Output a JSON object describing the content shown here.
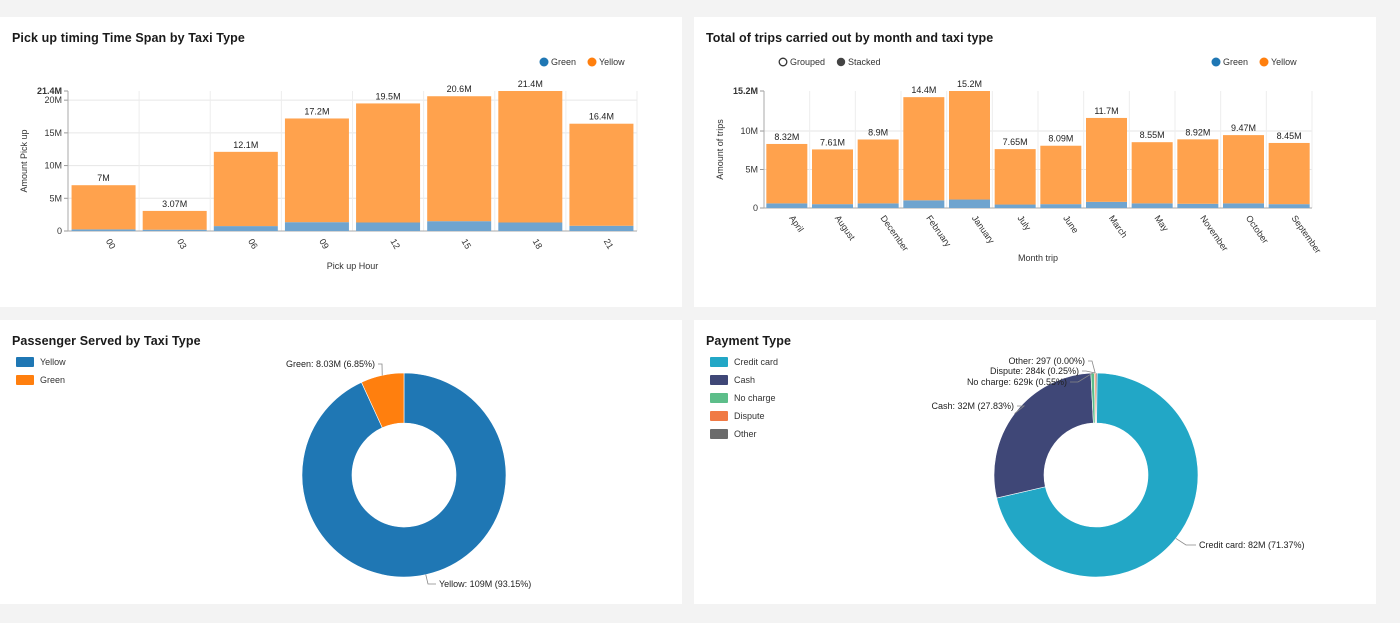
{
  "colors": {
    "green_series": "#1f77b4",
    "yellow_series": "#ff7f0e",
    "bar_green": "#6fa4cf",
    "bar_yellow": "#ffa24d",
    "donut_yellow": "#1f77b4",
    "donut_green": "#ff7f0e",
    "credit": "#22a7c6",
    "cash": "#3f4777",
    "no_charge": "#5dbe8a",
    "dispute": "#f07a45",
    "other": "#6b6b6b"
  },
  "chart_data": [
    {
      "id": "pickup",
      "type": "bar",
      "title": "Pick up timing Time Span by Taxi Type",
      "xlabel": "Pick up Hour",
      "ylabel": "Amount Pick up",
      "legend": [
        "Green",
        "Yellow"
      ],
      "legend_position": "top-right",
      "ymax_label": "21.4M",
      "yticks": [
        "0",
        "5M",
        "10M",
        "15M",
        "20M"
      ],
      "ylim": [
        0,
        21.4
      ],
      "categories": [
        "00",
        "03",
        "06",
        "09",
        "12",
        "15",
        "18",
        "21"
      ],
      "series": [
        {
          "name": "Green",
          "values": [
            0.25,
            0.2,
            0.75,
            1.35,
            1.3,
            1.5,
            1.3,
            0.8
          ]
        },
        {
          "name": "Yellow",
          "values": [
            6.75,
            2.87,
            11.35,
            15.85,
            18.2,
            19.1,
            20.1,
            15.6
          ]
        }
      ],
      "totals": [
        "7M",
        "3.07M",
        "12.1M",
        "17.2M",
        "19.5M",
        "20.6M",
        "21.4M",
        "16.4M"
      ]
    },
    {
      "id": "trips",
      "type": "bar",
      "title": "Total of trips carried out by month and taxi type",
      "xlabel": "Month trip",
      "ylabel": "Amount of trips",
      "legend": [
        "Green",
        "Yellow"
      ],
      "legend_position": "top-right",
      "controls": [
        "Grouped",
        "Stacked"
      ],
      "ymax_label": "15.2M",
      "yticks": [
        "0",
        "5M",
        "10M"
      ],
      "ylim": [
        0,
        15.2
      ],
      "categories": [
        "April",
        "August",
        "December",
        "February",
        "January",
        "July",
        "June",
        "March",
        "May",
        "November",
        "October",
        "September"
      ],
      "series": [
        {
          "name": "Green",
          "values": [
            0.6,
            0.5,
            0.6,
            1.0,
            1.1,
            0.45,
            0.5,
            0.8,
            0.6,
            0.55,
            0.6,
            0.5
          ]
        },
        {
          "name": "Yellow",
          "values": [
            7.72,
            7.11,
            8.3,
            13.4,
            14.1,
            7.2,
            7.59,
            10.9,
            7.95,
            8.37,
            8.87,
            7.95
          ]
        }
      ],
      "totals": [
        "8.32M",
        "7.61M",
        "8.9M",
        "14.4M",
        "15.2M",
        "7.65M",
        "8.09M",
        "11.7M",
        "8.55M",
        "8.92M",
        "9.47M",
        "8.45M"
      ]
    },
    {
      "id": "passengers",
      "type": "pie",
      "title": "Passenger Served by Taxi Type",
      "legend": [
        "Yellow",
        "Green"
      ],
      "legend_position": "top-left",
      "slices": [
        {
          "name": "Yellow",
          "value": 93.15,
          "label": "Yellow: 109M (93.15%)"
        },
        {
          "name": "Green",
          "value": 6.85,
          "label": "Green: 8.03M (6.85%)"
        }
      ]
    },
    {
      "id": "payment",
      "type": "pie",
      "title": "Payment Type",
      "legend": [
        "Credit card",
        "Cash",
        "No charge",
        "Dispute",
        "Other"
      ],
      "legend_position": "top-left",
      "slices": [
        {
          "name": "Credit card",
          "value": 71.37,
          "label": "Credit card: 82M (71.37%)"
        },
        {
          "name": "Cash",
          "value": 27.83,
          "label": "Cash: 32M (27.83%)"
        },
        {
          "name": "No charge",
          "value": 0.55,
          "label": "No charge: 629k (0.55%)"
        },
        {
          "name": "Dispute",
          "value": 0.25,
          "label": "Dispute: 284k (0.25%)"
        },
        {
          "name": "Other",
          "value": 0.001,
          "label": "Other: 297 (0.00%)"
        }
      ]
    }
  ]
}
